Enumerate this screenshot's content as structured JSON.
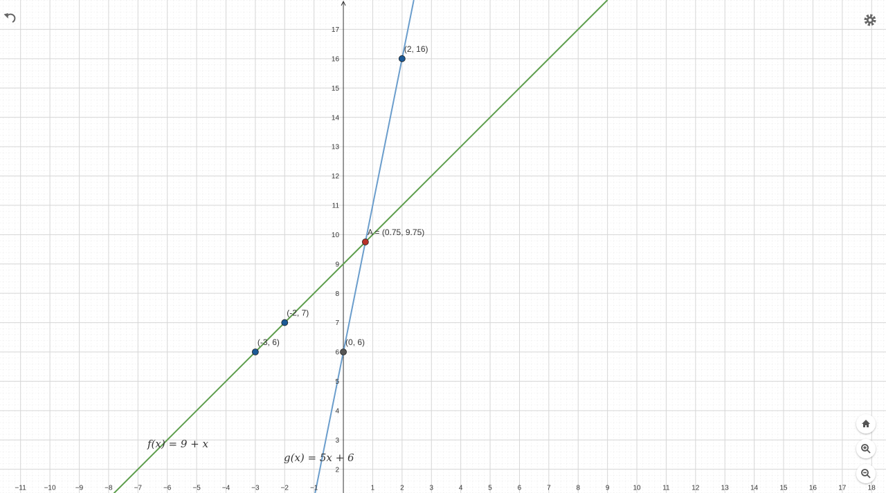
{
  "chart_data": {
    "type": "line",
    "xlim": [
      -11.7,
      18.49
    ],
    "ylim": [
      1.19,
      18
    ],
    "grid": true,
    "xticks": [
      {
        "value": -11,
        "label": "−11"
      },
      {
        "value": -10,
        "label": "−10"
      },
      {
        "value": -9,
        "label": "−9"
      },
      {
        "value": -8,
        "label": "−8"
      },
      {
        "value": -7,
        "label": "−7"
      },
      {
        "value": -6,
        "label": "−6"
      },
      {
        "value": -5,
        "label": "−5"
      },
      {
        "value": -4,
        "label": "−4"
      },
      {
        "value": -3,
        "label": "−3"
      },
      {
        "value": -2,
        "label": "−2"
      },
      {
        "value": -1,
        "label": "−1"
      },
      1,
      2,
      3,
      4,
      5,
      6,
      7,
      8,
      9,
      10,
      11,
      12,
      13,
      14,
      15,
      16,
      17,
      18
    ],
    "yticks": [
      2,
      3,
      4,
      5,
      6,
      7,
      8,
      9,
      10,
      11,
      12,
      13,
      14,
      15,
      16,
      17
    ],
    "series": [
      {
        "name": "f(x) = 9 + x",
        "color": "#5d9e4c",
        "x": [
          -8,
          9
        ],
        "values": [
          1,
          18
        ]
      },
      {
        "name": "g(x) = 5x + 6",
        "color": "#6a9dcc",
        "x": [
          -1,
          2.4
        ],
        "values": [
          1,
          18
        ]
      }
    ],
    "points": [
      {
        "label": "(2, 16)",
        "x": 2,
        "y": 16,
        "color": "#1c5a96",
        "label_color": "#4a8ccc"
      },
      {
        "label": "(-2, 7)",
        "x": -2,
        "y": 7,
        "color": "#1c5a96",
        "label_color": "#4a8ccc"
      },
      {
        "label": "(-3, 6)",
        "x": -3,
        "y": 6,
        "color": "#1c5a96",
        "label_color": "#4a8ccc"
      },
      {
        "label": "(0, 6)",
        "x": 0,
        "y": 6,
        "color": "#555555",
        "label_color": "#777777"
      },
      {
        "label": "A = (0.75, 9.75)",
        "x": 0.75,
        "y": 9.75,
        "color": "#b8322a",
        "label_color": "#d0574f"
      }
    ]
  }
}
